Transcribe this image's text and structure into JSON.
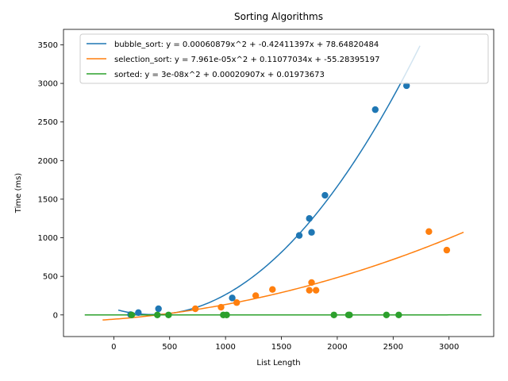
{
  "chart_data": {
    "type": "scatter",
    "title": "Sorting Algorithms",
    "xlabel": "List Length",
    "ylabel": "Time (ms)",
    "xlim": [
      -450,
      3400
    ],
    "ylim": [
      -280,
      3700
    ],
    "xticks": [
      0,
      500,
      1000,
      1500,
      2000,
      2500,
      3000
    ],
    "yticks": [
      0,
      500,
      1000,
      1500,
      2000,
      2500,
      3000,
      3500
    ],
    "legend_position": "top-right",
    "grid": false,
    "series": [
      {
        "name": "bubble_sort",
        "legend_label": "bubble_sort: y = 0.00060879x^2 + -0.42411397x + 78.64820484",
        "color": "#1f77b4",
        "fit": {
          "a": 0.00060879,
          "b": -0.42411397,
          "c": 78.64820484,
          "x_range": [
            40,
            2740
          ]
        },
        "points": [
          [
            150,
            5
          ],
          [
            220,
            30
          ],
          [
            400,
            80
          ],
          [
            1060,
            220
          ],
          [
            1660,
            1030
          ],
          [
            1750,
            1250
          ],
          [
            1770,
            1070
          ],
          [
            1890,
            1550
          ],
          [
            2340,
            2660
          ],
          [
            2620,
            2970
          ]
        ]
      },
      {
        "name": "selection_sort",
        "legend_label": "selection_sort: y = 7.961e-05x^2 + 0.11077034x + -55.28395197",
        "color": "#ff7f0e",
        "fit": {
          "a": 7.961e-05,
          "b": 0.11077034,
          "c": -55.28395197,
          "x_range": [
            -100,
            3130
          ]
        },
        "points": [
          [
            730,
            80
          ],
          [
            960,
            100
          ],
          [
            1100,
            160
          ],
          [
            1270,
            250
          ],
          [
            1420,
            330
          ],
          [
            1750,
            320
          ],
          [
            1770,
            420
          ],
          [
            1810,
            320
          ],
          [
            2820,
            1080
          ],
          [
            2980,
            840
          ]
        ]
      },
      {
        "name": "sorted",
        "legend_label": "sorted: y = 3e-08x^2 + 0.00020907x + 0.01973673",
        "color": "#2ca02c",
        "fit": {
          "a": 3e-08,
          "b": 0.00020907,
          "c": 0.01973673,
          "x_range": [
            -260,
            3290
          ]
        },
        "points": [
          [
            160,
            0
          ],
          [
            390,
            0
          ],
          [
            490,
            0
          ],
          [
            980,
            0
          ],
          [
            1010,
            0
          ],
          [
            1970,
            0
          ],
          [
            2100,
            0
          ],
          [
            2110,
            0
          ],
          [
            2440,
            0
          ],
          [
            2550,
            0
          ]
        ]
      }
    ]
  }
}
